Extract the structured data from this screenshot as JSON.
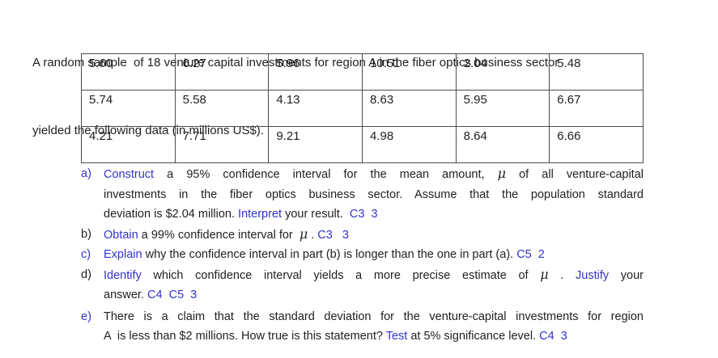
{
  "colors": {
    "accent_blue": "#3333cc",
    "text_black": "#1f1f1f",
    "table_border": "#4d4d4d"
  },
  "intro": {
    "line1": "A random sample  of 18 venture capital investments for region A in the fiber optics business sector",
    "line2": "yielded the following data (in millions US$)."
  },
  "table": {
    "rows": [
      [
        "5.60",
        "6.27",
        "5.96",
        "10.51",
        "2.04",
        "5.48"
      ],
      [
        "5.74",
        "5.58",
        "4.13",
        "8.63",
        "5.95",
        "6.67"
      ],
      [
        "4.21",
        "7.71",
        "9.21",
        "4.98",
        "8.64",
        "6.66"
      ]
    ]
  },
  "questions": [
    {
      "label": "a)",
      "label_color": "#3333cc",
      "lines": [
        {
          "justify": true,
          "segments": [
            {
              "text": "Construct",
              "style": "blue"
            },
            {
              "text": " a 95% confidence interval for the mean amount, ",
              "style": "black"
            },
            {
              "text": "μ",
              "style": "mu"
            },
            {
              "text": " of all venture-capital",
              "style": "black"
            }
          ]
        },
        {
          "justify": true,
          "segments": [
            {
              "text": "investments in the fiber optics business sector. Assume that the population standard",
              "style": "black"
            }
          ]
        },
        {
          "justify": false,
          "segments": [
            {
              "text": "deviation is $2.04 million. ",
              "style": "black"
            },
            {
              "text": "Interpret",
              "style": "blue"
            },
            {
              "text": " your result.  ",
              "style": "black"
            },
            {
              "text": "C3  3",
              "style": "blue"
            }
          ]
        }
      ]
    },
    {
      "label": "b)",
      "label_color": "#1f1f1f",
      "lines": [
        {
          "justify": false,
          "segments": [
            {
              "text": "Obtain",
              "style": "blue"
            },
            {
              "text": " a 99% confidence interval for  ",
              "style": "black"
            },
            {
              "text": "μ",
              "style": "mu"
            },
            {
              "text": " . ",
              "style": "black"
            },
            {
              "text": "C3   3",
              "style": "blue"
            }
          ]
        }
      ]
    },
    {
      "label": "c)",
      "label_color": "#3333cc",
      "lines": [
        {
          "justify": false,
          "segments": [
            {
              "text": "Explain",
              "style": "blue"
            },
            {
              "text": " why the confidence interval in part (b) is longer than the one in part (a). ",
              "style": "black"
            },
            {
              "text": "C5  2",
              "style": "blue"
            }
          ]
        }
      ]
    },
    {
      "label": "d)",
      "label_color": "#1f1f1f",
      "lines": [
        {
          "justify": true,
          "segments": [
            {
              "text": "Identify",
              "style": "blue"
            },
            {
              "text": " which confidence interval yields a more precise estimate of ",
              "style": "black"
            },
            {
              "text": "μ",
              "style": "mu"
            },
            {
              "text": " . ",
              "style": "black"
            },
            {
              "text": "Justify",
              "style": "blue"
            },
            {
              "text": " your",
              "style": "black"
            }
          ]
        },
        {
          "justify": false,
          "segments": [
            {
              "text": "answer. ",
              "style": "black"
            },
            {
              "text": "C4  C5  3",
              "style": "blue"
            }
          ]
        }
      ]
    },
    {
      "label": "e)",
      "label_color": "#3333cc",
      "lines": [
        {
          "justify": true,
          "segments": [
            {
              "text": "There is a claim that the standard deviation for the venture-capital investments for region",
              "style": "black"
            }
          ]
        },
        {
          "justify": false,
          "segments": [
            {
              "text": "A  is less than $2 millions. How true is this statement? ",
              "style": "black"
            },
            {
              "text": "Test",
              "style": "blue"
            },
            {
              "text": " at 5% significance level. ",
              "style": "black"
            },
            {
              "text": "C4  3",
              "style": "blue"
            }
          ]
        }
      ]
    }
  ]
}
